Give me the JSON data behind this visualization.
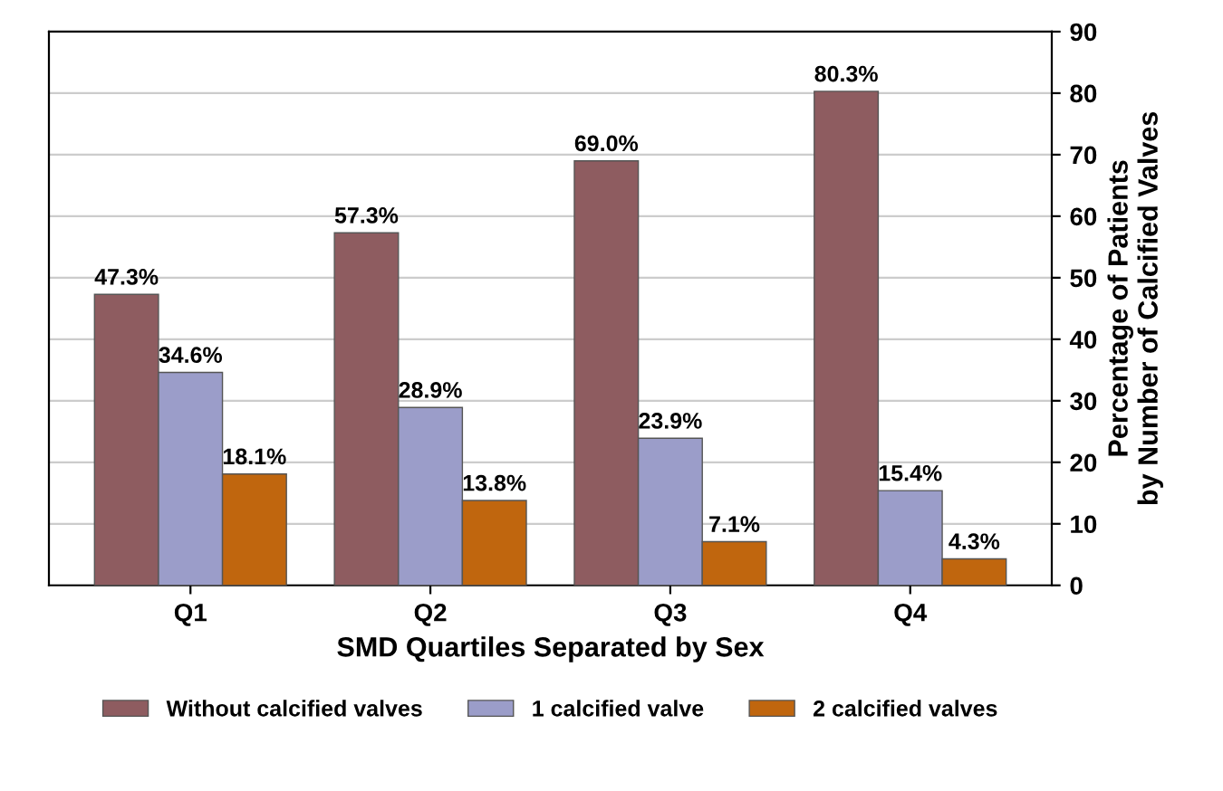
{
  "chart_data": {
    "type": "bar",
    "xlabel": "SMD Quartiles Separated by Sex",
    "ylabel": "Percentage of Patients\nby Number of Calcified Valves",
    "categories": [
      "Q1",
      "Q2",
      "Q3",
      "Q4"
    ],
    "series": [
      {
        "name": "Without calcified valves",
        "color": "#8e5c60",
        "values": [
          47.3,
          57.3,
          69.0,
          80.3
        ],
        "value_labels": [
          "47.3%",
          "57.3%",
          "69.0%",
          "80.3%"
        ]
      },
      {
        "name": "1 calcified valve",
        "color": "#9b9dc9",
        "values": [
          34.6,
          28.9,
          23.9,
          15.4
        ],
        "value_labels": [
          "34.6%",
          "28.9%",
          "23.9%",
          "15.4%"
        ]
      },
      {
        "name": "2 calcified valves",
        "color": "#c0660e",
        "values": [
          18.1,
          13.8,
          7.1,
          4.3
        ],
        "value_labels": [
          "18.1%",
          "13.8%",
          "7.1%",
          "4.3%"
        ]
      }
    ],
    "ylim": [
      0,
      90
    ],
    "yticks": [
      0,
      10,
      20,
      30,
      40,
      50,
      60,
      70,
      80,
      90
    ],
    "grid": "y",
    "legend": "bottom"
  }
}
